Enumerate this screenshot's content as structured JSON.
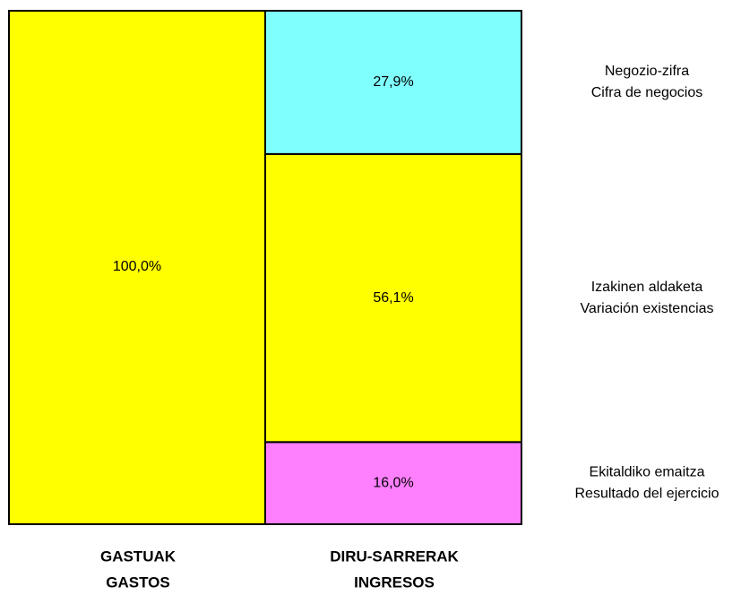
{
  "chart_data": {
    "type": "stacked-bar",
    "categories": [
      [
        "GASTUAK",
        "GASTOS"
      ],
      [
        "DIRU-SARRERAK",
        "INGRESOS"
      ]
    ],
    "ylim": [
      0,
      100
    ],
    "series": [
      {
        "color": "#ffff00",
        "values": [
          100.0,
          null
        ],
        "value_labels": [
          "100,0%",
          null
        ]
      },
      {
        "name": [
          "Ekitaldiko emaitza",
          "Resultado del ejercicio"
        ],
        "color": "#ff80ff",
        "values": [
          null,
          16.0
        ],
        "value_labels": [
          null,
          "16,0%"
        ]
      },
      {
        "name": [
          "Izakinen aldaketa",
          "Variación existencias"
        ],
        "color": "#ffff00",
        "values": [
          null,
          56.1
        ],
        "value_labels": [
          null,
          "56,1%"
        ]
      },
      {
        "name": [
          "Negozio-zifra",
          "Cifra de negocios"
        ],
        "color": "#80ffff",
        "values": [
          null,
          27.9
        ],
        "value_labels": [
          null,
          "27,9%"
        ]
      }
    ]
  }
}
